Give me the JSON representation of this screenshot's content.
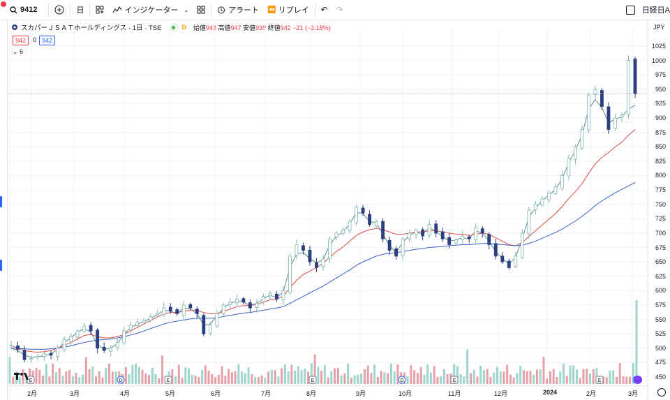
{
  "toolbar": {
    "symbol": "9412",
    "interval": "日",
    "indicators_label": "インジケーター",
    "alert_label": "アラート",
    "replay_label": "リプレイ",
    "right_label": "日経日A"
  },
  "legend": {
    "title": "スカパーＪＳＡＴホールディングス · 1日 · TSE",
    "badge": "D",
    "open_label": "始値",
    "open": "943",
    "high_label": "高値",
    "high": "947",
    "low_label": "安値",
    "low": "930",
    "close_label": "終値",
    "close": "942",
    "change": "−21 (−2.18%)",
    "price_left": "942",
    "spread": "0",
    "price_right": "942",
    "collapse": "6"
  },
  "axis": {
    "currency": "JPY",
    "y_ticks": [
      "1025",
      "1000",
      "975",
      "950",
      "925",
      "900",
      "875",
      "850",
      "825",
      "800",
      "775",
      "750",
      "725",
      "700",
      "675",
      "650",
      "625",
      "600",
      "575",
      "550",
      "525",
      "500",
      "475",
      "450"
    ],
    "x_ticks": [
      "2月",
      "3月",
      "4月",
      "5月",
      "6月",
      "7月",
      "8月",
      "9月",
      "10月",
      "11月",
      "12月",
      "2024",
      "2月",
      "3月"
    ]
  },
  "colors": {
    "up": "#26a69a",
    "down": "#2a3f7f",
    "ma_short": "#5d8a8a",
    "ma_mid": "#e04a4a",
    "ma_long": "#3a5fcd",
    "accent": "#2962ff"
  },
  "chart_data": {
    "type": "candlestick",
    "ylim": [
      440,
      1035
    ],
    "series": [
      {
        "name": "close",
        "values": [
          505,
          498,
          480,
          482,
          486,
          490,
          488,
          500,
          515,
          520,
          530,
          538,
          530,
          500,
          496,
          500,
          510,
          530,
          540,
          545,
          548,
          555,
          560,
          570,
          565,
          560,
          575,
          570,
          560,
          525,
          540,
          560,
          575,
          580,
          585,
          580,
          570,
          578,
          590,
          595,
          585,
          600,
          660,
          680,
          670,
          650,
          640,
          655,
          690,
          700,
          705,
          720,
          745,
          735,
          715,
          720,
          690,
          670,
          660,
          690,
          700,
          705,
          695,
          715,
          700,
          690,
          680,
          688,
          695,
          690,
          710,
          700,
          680,
          660,
          650,
          640,
          660,
          700,
          740,
          750,
          760,
          770,
          780,
          800,
          830,
          850,
          880,
          940,
          950,
          920,
          880,
          900,
          905,
          1000,
          942
        ]
      },
      {
        "name": "MA (short)",
        "values": [
          500,
          496,
          488,
          484,
          485,
          487,
          490,
          498,
          510,
          518,
          528,
          534,
          528,
          506,
          498,
          500,
          508,
          524,
          536,
          542,
          546,
          552,
          558,
          566,
          564,
          560,
          570,
          568,
          560,
          540,
          542,
          556,
          570,
          578,
          582,
          580,
          574,
          578,
          586,
          592,
          588,
          598,
          640,
          664,
          666,
          656,
          648,
          654,
          680,
          694,
          702,
          716,
          736,
          734,
          720,
          718,
          698,
          678,
          666,
          684,
          696,
          702,
          698,
          710,
          702,
          694,
          686,
          688,
          692,
          690,
          704,
          700,
          686,
          668,
          656,
          646,
          658,
          690,
          728,
          744,
          756,
          766,
          776,
          794,
          822,
          844,
          870,
          916,
          932,
          918,
          892,
          898,
          902,
          916,
          922
        ]
      },
      {
        "name": "MA (mid)",
        "values": [
          505,
          500,
          496,
          494,
          493,
          494,
          496,
          500,
          505,
          510,
          516,
          522,
          524,
          520,
          518,
          518,
          520,
          524,
          530,
          536,
          542,
          548,
          554,
          560,
          562,
          562,
          564,
          566,
          566,
          562,
          560,
          560,
          564,
          568,
          572,
          574,
          574,
          576,
          580,
          584,
          586,
          590,
          605,
          618,
          628,
          634,
          640,
          648,
          658,
          668,
          676,
          686,
          696,
          702,
          706,
          708,
          706,
          702,
          698,
          698,
          700,
          702,
          702,
          704,
          704,
          702,
          700,
          698,
          698,
          696,
          698,
          700,
          698,
          692,
          686,
          680,
          678,
          684,
          694,
          704,
          714,
          724,
          734,
          746,
          760,
          772,
          786,
          804,
          820,
          832,
          840,
          850,
          858,
          870,
          880
        ]
      },
      {
        "name": "MA (long)",
        "values": [
          500,
          500,
          499,
          498,
          498,
          498,
          499,
          500,
          502,
          504,
          507,
          510,
          512,
          514,
          515,
          516,
          518,
          520,
          523,
          526,
          530,
          534,
          538,
          542,
          545,
          547,
          549,
          551,
          552,
          552,
          552,
          553,
          555,
          557,
          559,
          561,
          562,
          564,
          566,
          568,
          570,
          572,
          578,
          584,
          590,
          596,
          602,
          608,
          615,
          622,
          629,
          636,
          644,
          650,
          655,
          660,
          663,
          665,
          666,
          668,
          670,
          672,
          673,
          675,
          676,
          677,
          678,
          679,
          680,
          680,
          681,
          682,
          682,
          681,
          680,
          679,
          678,
          679,
          682,
          686,
          691,
          696,
          701,
          707,
          714,
          721,
          729,
          738,
          748,
          756,
          763,
          770,
          776,
          782,
          788
        ]
      }
    ],
    "markers": [
      "E",
      "D",
      "E",
      "E",
      "D",
      "E",
      "E",
      "D",
      "E"
    ]
  }
}
